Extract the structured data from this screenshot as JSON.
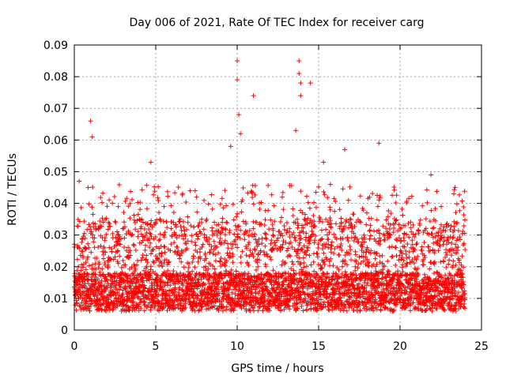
{
  "chart_data": {
    "type": "scatter",
    "title": "Day 006 of 2021, Rate Of TEC Index for receiver carg",
    "xlabel": "GPS time / hours",
    "ylabel": "ROTI / TECUs",
    "xlim": [
      0,
      25
    ],
    "ylim": [
      0,
      0.09
    ],
    "x_ticks": [
      0,
      5,
      10,
      15,
      20,
      25
    ],
    "x_tick_labels": [
      "0",
      "5",
      "10",
      "15",
      "20",
      "25"
    ],
    "y_ticks": [
      0,
      0.01,
      0.02,
      0.03,
      0.04,
      0.05,
      0.06,
      0.07,
      0.08,
      0.09
    ],
    "y_tick_labels": [
      "0",
      "0.01",
      "0.02",
      "0.03",
      "0.04",
      "0.05",
      "0.06",
      "0.07",
      "0.08",
      "0.09"
    ],
    "grid": true,
    "marker": "+",
    "series": [
      {
        "name": "ROTI",
        "color": "#ff0000",
        "x_range": [
          0,
          24
        ],
        "typical_band": [
          0.005,
          0.035
        ],
        "notable_points": [
          {
            "x": 0.3,
            "y": 0.047
          },
          {
            "x": 1.0,
            "y": 0.066
          },
          {
            "x": 1.1,
            "y": 0.061
          },
          {
            "x": 4.7,
            "y": 0.053
          },
          {
            "x": 9.6,
            "y": 0.058
          },
          {
            "x": 10.0,
            "y": 0.085
          },
          {
            "x": 10.0,
            "y": 0.079
          },
          {
            "x": 10.1,
            "y": 0.068
          },
          {
            "x": 10.2,
            "y": 0.062
          },
          {
            "x": 11.0,
            "y": 0.074
          },
          {
            "x": 13.6,
            "y": 0.063
          },
          {
            "x": 13.8,
            "y": 0.085
          },
          {
            "x": 13.8,
            "y": 0.081
          },
          {
            "x": 13.9,
            "y": 0.078
          },
          {
            "x": 13.9,
            "y": 0.074
          },
          {
            "x": 14.5,
            "y": 0.078
          },
          {
            "x": 15.3,
            "y": 0.053
          },
          {
            "x": 16.6,
            "y": 0.057
          },
          {
            "x": 18.7,
            "y": 0.059
          },
          {
            "x": 21.9,
            "y": 0.049
          },
          {
            "x": 23.3,
            "y": 0.043
          }
        ]
      }
    ]
  }
}
